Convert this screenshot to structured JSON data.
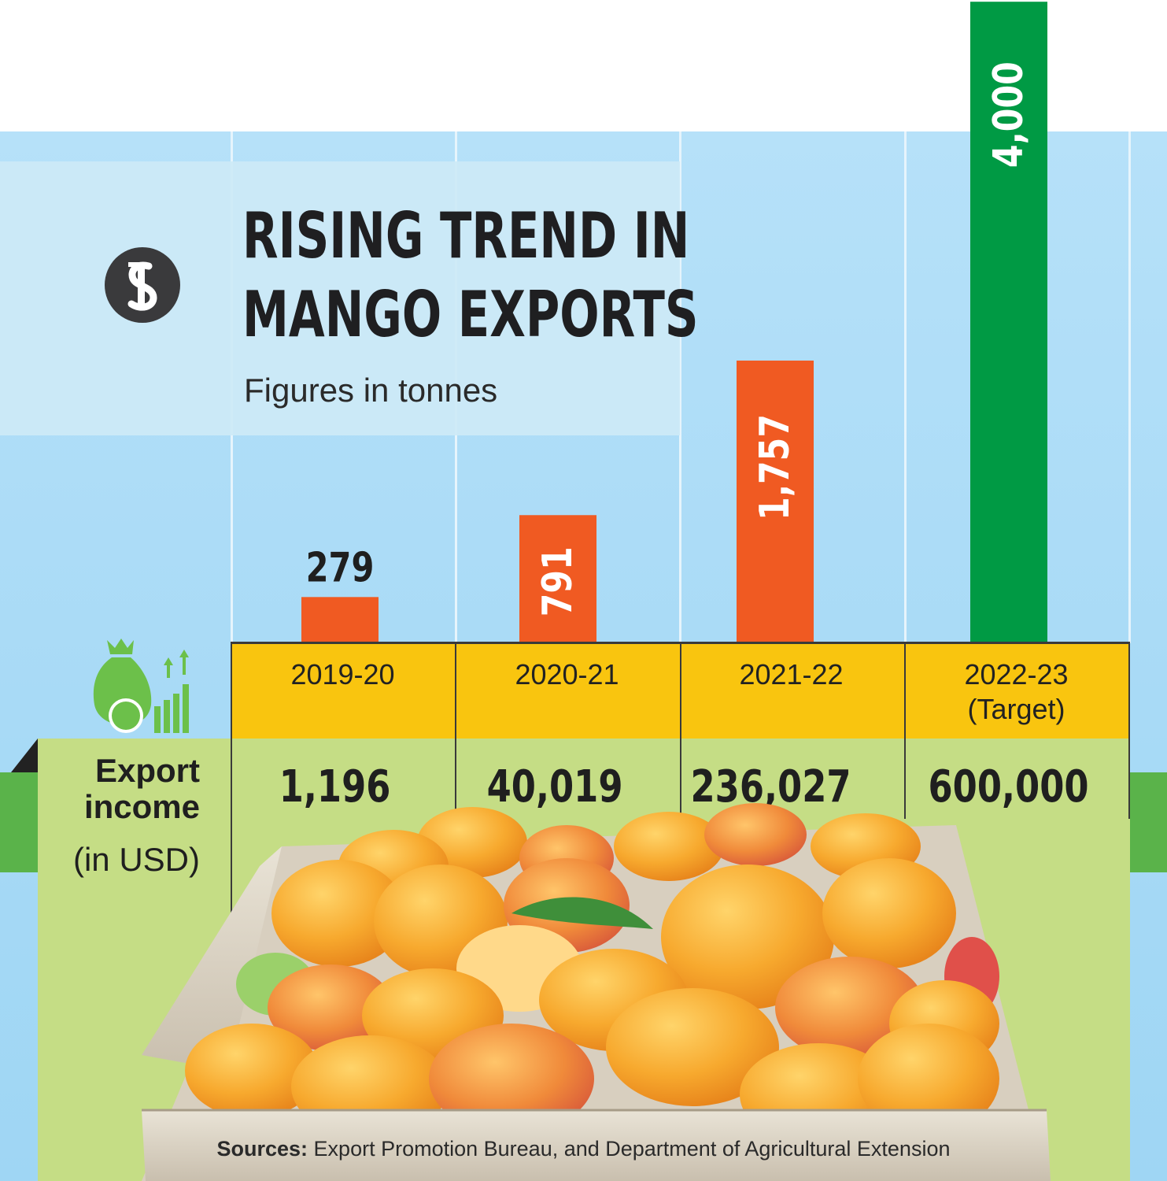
{
  "title_lines": [
    "RISING TREND IN",
    "MANGO EXPORTS"
  ],
  "subtitle": "Figures in tonnes",
  "colors": {
    "actual_bar": "#f05a22",
    "target_bar": "#009a44",
    "year_band": "#f9c50f",
    "income_band": "#c5dd85"
  },
  "chart_data": {
    "type": "bar",
    "title": "RISING TREND IN MANGO EXPORTS",
    "subtitle": "Figures in tonnes",
    "categories": [
      "2019-20",
      "2020-21",
      "2021-22",
      "2022-23 (Target)"
    ],
    "series": [
      {
        "values": [
          279,
          791,
          1757,
          4000
        ]
      }
    ],
    "value_labels": [
      "279",
      "791",
      "1,757",
      "4,000"
    ],
    "ylim": [
      0,
      4000
    ],
    "grid": false,
    "legend": "none"
  },
  "years": [
    {
      "line1": "2019-20",
      "line2": ""
    },
    {
      "line1": "2020-21",
      "line2": ""
    },
    {
      "line1": "2021-22",
      "line2": ""
    },
    {
      "line1": "2022-23",
      "line2": "(Target)"
    }
  ],
  "income": {
    "label_line1": "Export",
    "label_line2": "income",
    "label_line3": "(in USD)",
    "values": [
      "1,196",
      "40,019",
      "236,027",
      "600,000"
    ]
  },
  "sources_label": "Sources:",
  "sources_text": " Export Promotion Bureau, and Department of Agricultural Extension",
  "logo_icon": "tbs-logo-icon",
  "export_icon": "money-bag-growth-icon"
}
